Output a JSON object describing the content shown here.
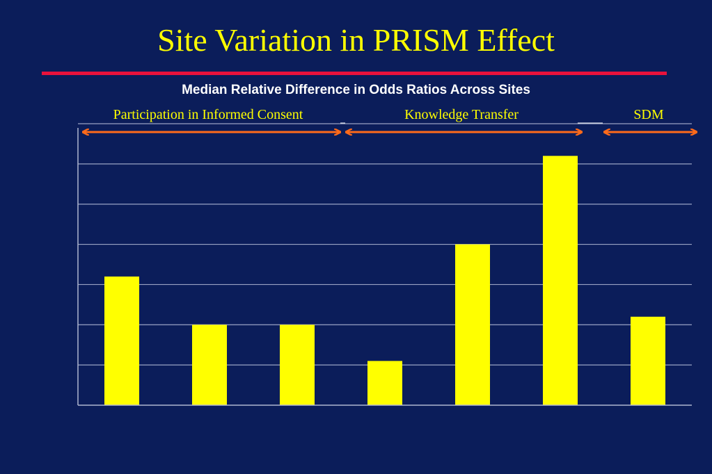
{
  "slide": {
    "title": "Site Variation in PRISM Effect"
  },
  "colors": {
    "background": "#0b1d5a",
    "title": "#ffff00",
    "rule": "#e8123c",
    "bar": "#ffff00",
    "arrow": "#ff6a1a",
    "grid": "#9aa3c4",
    "axis": "#b0b6cf"
  },
  "groups": [
    {
      "label": "Participation in Informed Consent",
      "bar_indices": [
        0,
        1,
        2
      ]
    },
    {
      "label": "Knowledge Transfer",
      "bar_indices": [
        3,
        4,
        5
      ]
    },
    {
      "label": "SDM",
      "bar_indices": [
        6
      ]
    }
  ],
  "chart_data": {
    "type": "bar",
    "title": "Median Relative Difference in Odds Ratios Across Sites",
    "xlabel": "",
    "ylabel": "",
    "values": [
      3.2,
      2.0,
      2.0,
      1.1,
      4.0,
      6.2,
      2.2
    ],
    "ylim": [
      0,
      7
    ],
    "gridlines": [
      1,
      2,
      3,
      4,
      5,
      6,
      7
    ],
    "grid": true,
    "y_tick_labels_visible": false,
    "x_tick_labels_visible": false
  }
}
